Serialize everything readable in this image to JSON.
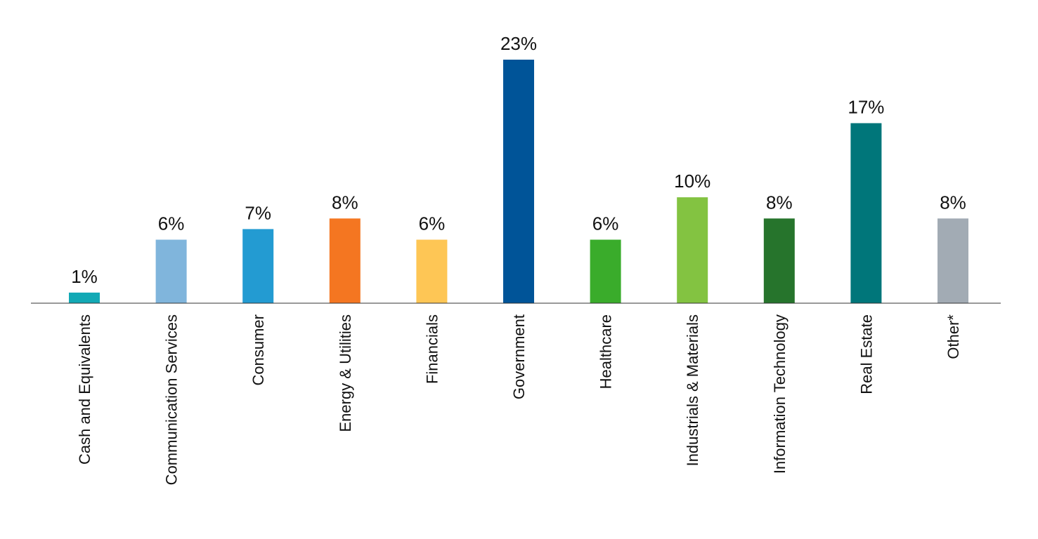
{
  "chart_data": {
    "type": "bar",
    "title": "",
    "xlabel": "",
    "ylabel": "",
    "ylim": [
      0,
      23
    ],
    "grid": false,
    "legend": "none",
    "categories": [
      "Cash and Equivalents",
      "Communication Services",
      "Consumer",
      "Energy & Utilities",
      "Financials",
      "Government",
      "Healthcare",
      "Industrials & Materials",
      "Information Technology",
      "Real Estate",
      "Other*"
    ],
    "values": [
      1,
      6,
      7,
      8,
      6,
      23,
      6,
      10,
      8,
      17,
      8
    ],
    "data_labels": [
      "1%",
      "6%",
      "7%",
      "8%",
      "6%",
      "23%",
      "6%",
      "10%",
      "8%",
      "17%",
      "8%"
    ],
    "colors": [
      "#12a9b5",
      "#80b5dc",
      "#239bd2",
      "#f47621",
      "#fec655",
      "#005498",
      "#3aac2b",
      "#83c341",
      "#26742c",
      "#00767a",
      "#a2abb4"
    ]
  }
}
